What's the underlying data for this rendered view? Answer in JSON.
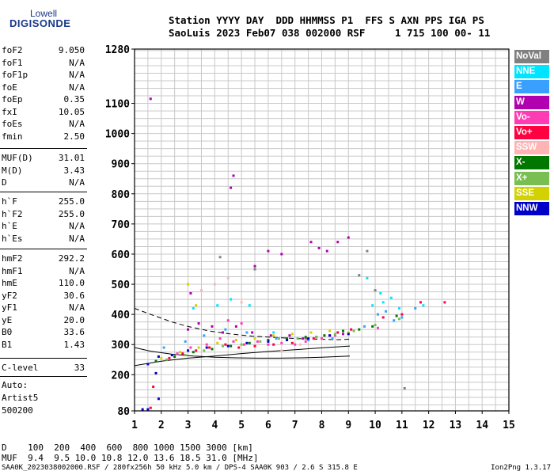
{
  "logo": {
    "top": "Lowell",
    "bottom": "DIGISONDE"
  },
  "header": {
    "line1": "Station YYYY DAY  DDD HHMMSS P1  FFS S AXN PPS IGA PS",
    "line2": "SaoLuis 2023 Feb07 038 002000 RSF     1 715 100 00- 11"
  },
  "params_group1": [
    {
      "name": "foF2",
      "value": "9.050"
    },
    {
      "name": "foF1",
      "value": "N/A"
    },
    {
      "name": "foF1p",
      "value": "N/A"
    },
    {
      "name": "foE",
      "value": "N/A"
    },
    {
      "name": "foEp",
      "value": "0.35"
    },
    {
      "name": "fxI",
      "value": "10.05"
    },
    {
      "name": "foEs",
      "value": "N/A"
    },
    {
      "name": "fmin",
      "value": "2.50"
    }
  ],
  "params_group2": [
    {
      "name": "MUF(D)",
      "value": "31.01"
    },
    {
      "name": "M(D)",
      "value": "3.43"
    },
    {
      "name": "D",
      "value": "N/A"
    }
  ],
  "params_group3": [
    {
      "name": "h`F",
      "value": "255.0"
    },
    {
      "name": "h`F2",
      "value": "255.0"
    },
    {
      "name": "h`E",
      "value": "N/A"
    },
    {
      "name": "h`Es",
      "value": "N/A"
    }
  ],
  "params_group4": [
    {
      "name": "hmF2",
      "value": "292.2"
    },
    {
      "name": "hmF1",
      "value": "N/A"
    },
    {
      "name": "hmE",
      "value": "110.0"
    },
    {
      "name": "yF2",
      "value": "30.6"
    },
    {
      "name": "yF1",
      "value": "N/A"
    },
    {
      "name": "yE",
      "value": "20.0"
    },
    {
      "name": "B0",
      "value": "33.6"
    },
    {
      "name": "B1",
      "value": "1.43"
    }
  ],
  "clevel": {
    "name": "C-level",
    "value": "33"
  },
  "auto": {
    "line1": "Auto:",
    "line2": "Artist5",
    "line3": "500200"
  },
  "legend": [
    {
      "label": "NoVal",
      "color": "#808080"
    },
    {
      "label": "NNE",
      "color": "#00e5ff"
    },
    {
      "label": "E",
      "color": "#3aa0ff"
    },
    {
      "label": "W",
      "color": "#b000b0"
    },
    {
      "label": "Vo-",
      "color": "#ff3cb4"
    },
    {
      "label": "Vo+",
      "color": "#ff0040"
    },
    {
      "label": "SSW",
      "color": "#ffb4b4"
    },
    {
      "label": "X-",
      "color": "#007800"
    },
    {
      "label": "X+",
      "color": "#78be50"
    },
    {
      "label": "SSE",
      "color": "#d2d200"
    },
    {
      "label": "NNW",
      "color": "#0000c8"
    }
  ],
  "chart_data": {
    "type": "scatter",
    "xlim": [
      1,
      15
    ],
    "ylim": [
      80,
      1280
    ],
    "x_ticks": [
      "1",
      "2",
      "3",
      "4",
      "5",
      "6",
      "7",
      "8",
      "9",
      "10",
      "11",
      "12",
      "13",
      "14",
      "15"
    ],
    "y_ticks": [
      "80",
      "200",
      "300",
      "400",
      "500",
      "600",
      "700",
      "800",
      "900",
      "1000",
      "1100",
      "1280"
    ],
    "grid": true,
    "series": [
      {
        "name": "NNE",
        "color": "#00e5ff",
        "points": [
          [
            3.2,
            420
          ],
          [
            4.1,
            430
          ],
          [
            4.6,
            450
          ],
          [
            5.3,
            430
          ],
          [
            6.2,
            340
          ],
          [
            7.1,
            320
          ],
          [
            9.9,
            430
          ],
          [
            10.3,
            440
          ],
          [
            10.6,
            455
          ],
          [
            10.9,
            420
          ],
          [
            11.8,
            430
          ],
          [
            9.7,
            520
          ],
          [
            10.2,
            470
          ]
        ]
      },
      {
        "name": "E",
        "color": "#3aa0ff",
        "points": [
          [
            2.1,
            290
          ],
          [
            2.9,
            310
          ],
          [
            3.6,
            330
          ],
          [
            4.4,
            350
          ],
          [
            5.2,
            340
          ],
          [
            6.3,
            320
          ],
          [
            7.5,
            315
          ],
          [
            8.4,
            320
          ],
          [
            9.6,
            360
          ],
          [
            10.1,
            400
          ],
          [
            10.4,
            410
          ],
          [
            10.7,
            380
          ],
          [
            11.0,
            390
          ],
          [
            11.5,
            420
          ]
        ]
      },
      {
        "name": "W",
        "color": "#b000b0",
        "points": [
          [
            3.0,
            350
          ],
          [
            3.4,
            370
          ],
          [
            3.9,
            360
          ],
          [
            4.3,
            340
          ],
          [
            4.8,
            360
          ],
          [
            5.4,
            340
          ],
          [
            6.1,
            330
          ],
          [
            6.8,
            330
          ],
          [
            7.3,
            320
          ],
          [
            7.8,
            325
          ],
          [
            8.3,
            330
          ],
          [
            8.8,
            335
          ],
          [
            7.6,
            640
          ],
          [
            7.9,
            620
          ],
          [
            8.2,
            610
          ],
          [
            8.6,
            640
          ],
          [
            9.0,
            655
          ],
          [
            6.5,
            600
          ],
          [
            6.0,
            610
          ],
          [
            5.5,
            560
          ],
          [
            3.1,
            470
          ],
          [
            4.6,
            820
          ],
          [
            4.7,
            860
          ],
          [
            1.6,
            1115
          ]
        ]
      },
      {
        "name": "Vo-",
        "color": "#ff3cb4",
        "points": [
          [
            2.6,
            270
          ],
          [
            3.1,
            290
          ],
          [
            3.7,
            300
          ],
          [
            4.2,
            320
          ],
          [
            4.7,
            310
          ],
          [
            5.1,
            300
          ],
          [
            5.6,
            310
          ],
          [
            6.0,
            300
          ],
          [
            6.5,
            305
          ],
          [
            7.0,
            300
          ],
          [
            7.4,
            310
          ],
          [
            8.0,
            320
          ],
          [
            8.5,
            330
          ],
          [
            4.5,
            380
          ],
          [
            5.0,
            370
          ],
          [
            10.1,
            355
          ]
        ]
      },
      {
        "name": "Vo+",
        "color": "#ff0040",
        "points": [
          [
            2.3,
            255
          ],
          [
            2.8,
            270
          ],
          [
            3.3,
            280
          ],
          [
            3.8,
            290
          ],
          [
            4.4,
            300
          ],
          [
            4.9,
            290
          ],
          [
            5.5,
            295
          ],
          [
            6.2,
            300
          ],
          [
            6.9,
            305
          ],
          [
            7.7,
            320
          ],
          [
            8.6,
            340
          ],
          [
            9.1,
            350
          ],
          [
            10.3,
            390
          ],
          [
            11.0,
            400
          ],
          [
            11.7,
            440
          ],
          [
            12.6,
            440
          ],
          [
            1.7,
            160
          ],
          [
            1.6,
            90
          ]
        ]
      },
      {
        "name": "SSW",
        "color": "#ffb4b4",
        "points": [
          [
            3.5,
            480
          ],
          [
            4.0,
            500
          ],
          [
            4.5,
            520
          ],
          [
            5.0,
            440
          ],
          [
            6.5,
            280
          ],
          [
            7.2,
            300
          ],
          [
            8.1,
            330
          ]
        ]
      },
      {
        "name": "X-",
        "color": "#007800",
        "points": [
          [
            1.8,
            245
          ],
          [
            2.5,
            260
          ],
          [
            3.2,
            275
          ],
          [
            3.9,
            285
          ],
          [
            4.6,
            295
          ],
          [
            5.3,
            305
          ],
          [
            6.0,
            315
          ],
          [
            6.7,
            320
          ],
          [
            7.4,
            325
          ],
          [
            8.1,
            330
          ],
          [
            8.8,
            345
          ],
          [
            9.4,
            350
          ],
          [
            9.9,
            360
          ],
          [
            10.8,
            395
          ]
        ]
      },
      {
        "name": "X+",
        "color": "#78be50",
        "points": [
          [
            2.2,
            250
          ],
          [
            2.9,
            265
          ],
          [
            3.6,
            280
          ],
          [
            4.3,
            295
          ],
          [
            5.0,
            300
          ],
          [
            5.7,
            310
          ],
          [
            6.4,
            320
          ],
          [
            7.1,
            320
          ],
          [
            7.8,
            325
          ],
          [
            8.5,
            335
          ],
          [
            9.2,
            345
          ],
          [
            10.0,
            365
          ],
          [
            10.9,
            385
          ]
        ]
      },
      {
        "name": "SSE",
        "color": "#d2d200",
        "points": [
          [
            2.0,
            255
          ],
          [
            2.7,
            275
          ],
          [
            3.4,
            290
          ],
          [
            4.1,
            305
          ],
          [
            4.8,
            315
          ],
          [
            5.5,
            320
          ],
          [
            6.2,
            330
          ],
          [
            6.9,
            335
          ],
          [
            7.6,
            340
          ],
          [
            8.3,
            345
          ],
          [
            9.0,
            340
          ],
          [
            3.3,
            430
          ],
          [
            3.0,
            500
          ]
        ]
      },
      {
        "name": "NNW",
        "color": "#0000c8",
        "points": [
          [
            1.5,
            235
          ],
          [
            1.9,
            260
          ],
          [
            2.4,
            265
          ],
          [
            3.0,
            280
          ],
          [
            3.7,
            290
          ],
          [
            4.5,
            295
          ],
          [
            5.2,
            305
          ],
          [
            6.0,
            310
          ],
          [
            6.7,
            315
          ],
          [
            7.5,
            320
          ],
          [
            8.3,
            330
          ],
          [
            9.0,
            335
          ],
          [
            1.8,
            205
          ],
          [
            1.9,
            120
          ],
          [
            1.3,
            85
          ],
          [
            1.5,
            85
          ]
        ]
      },
      {
        "name": "NoVal",
        "color": "#808080",
        "points": [
          [
            9.4,
            530
          ],
          [
            9.7,
            610
          ],
          [
            10.0,
            480
          ],
          [
            5.5,
            550
          ],
          [
            4.2,
            590
          ],
          [
            11.1,
            155
          ]
        ]
      }
    ],
    "profile_lines": [
      {
        "style": "dashed",
        "points": [
          [
            1.0,
            420
          ],
          [
            1.6,
            400
          ],
          [
            2.4,
            375
          ],
          [
            3.0,
            360
          ],
          [
            3.8,
            345
          ],
          [
            4.6,
            335
          ],
          [
            5.4,
            328
          ],
          [
            6.2,
            324
          ],
          [
            7.0,
            320
          ],
          [
            7.8,
            318
          ],
          [
            8.6,
            316
          ],
          [
            9.05,
            318
          ]
        ]
      },
      {
        "style": "solid",
        "points": [
          [
            1.0,
            290
          ],
          [
            1.6,
            278
          ],
          [
            2.4,
            268
          ],
          [
            3.2,
            262
          ],
          [
            4.0,
            258
          ],
          [
            4.8,
            256
          ],
          [
            5.6,
            255
          ],
          [
            6.4,
            255
          ],
          [
            7.2,
            256
          ],
          [
            8.0,
            258
          ],
          [
            9.05,
            262
          ]
        ]
      },
      {
        "style": "solid",
        "points": [
          [
            1.0,
            230
          ],
          [
            2.0,
            245
          ],
          [
            3.0,
            255
          ],
          [
            4.0,
            262
          ],
          [
            5.0,
            270
          ],
          [
            6.0,
            277
          ],
          [
            7.0,
            283
          ],
          [
            8.0,
            289
          ],
          [
            9.05,
            295
          ]
        ]
      }
    ]
  },
  "bottom_table": {
    "d_row": "D    100  200  400  600  800 1000 1500 3000 [km]",
    "muf_row": "MUF  9.4  9.5 10.0 10.8 12.0 13.6 18.5 31.0 [MHz]"
  },
  "footer": {
    "left": "SAA0K_2023038002000.RSF / 280fx256h 50 kHz 5.0 km / DPS-4 SAA0K 903 / 2.6 S 315.8 E",
    "right": "Ion2Png 1.3.17"
  }
}
